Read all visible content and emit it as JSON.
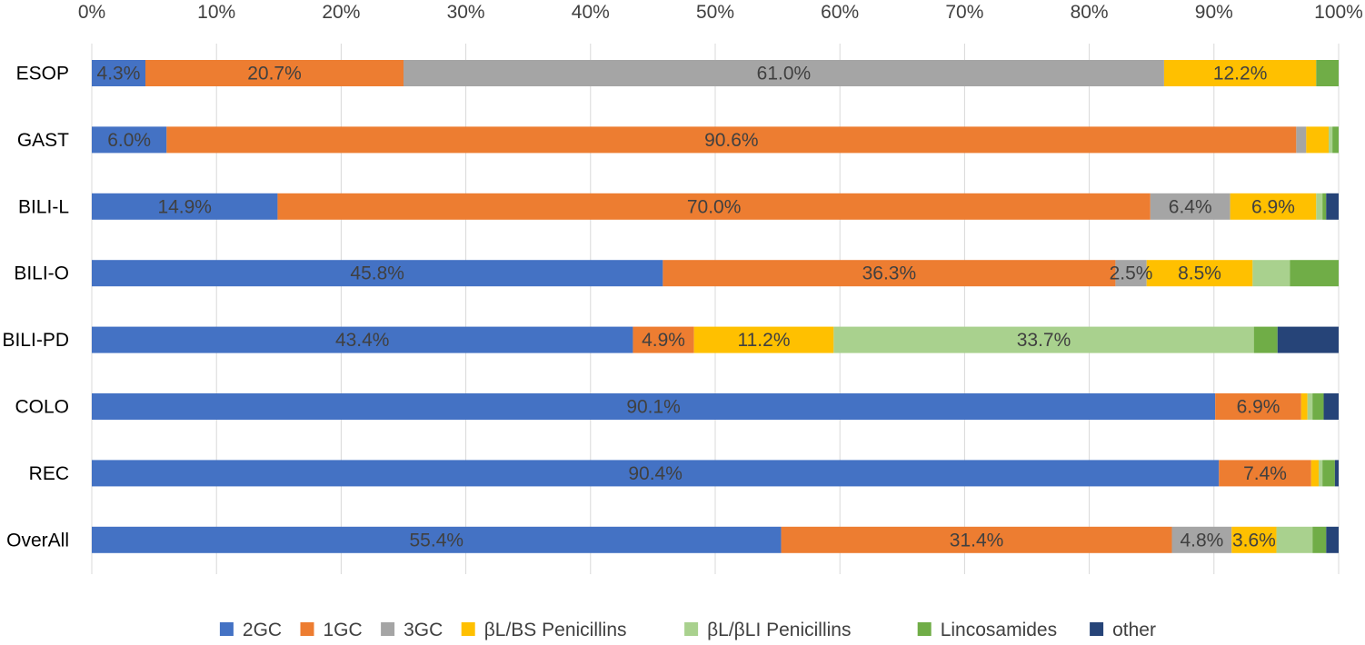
{
  "chart_data": {
    "type": "bar",
    "orientation": "horizontal",
    "stacked": "100-percent",
    "title": "",
    "xlabel": "",
    "ylabel": "",
    "xlim": [
      0,
      100
    ],
    "x_ticks": [
      "0%",
      "10%",
      "20%",
      "30%",
      "40%",
      "50%",
      "60%",
      "70%",
      "80%",
      "90%",
      "100%"
    ],
    "x_axis_position": "top",
    "grid": true,
    "legend_position": "bottom",
    "categories": [
      "ESOP",
      "GAST",
      "BILI-L",
      "BILI-O",
      "BILI-PD",
      "COLO",
      "REC",
      "OverAll"
    ],
    "series": [
      {
        "name": "2GC",
        "color": "#4472C4",
        "values": [
          4.3,
          6.0,
          14.9,
          45.8,
          43.4,
          90.1,
          90.4,
          55.4
        ],
        "labels": [
          "4.3%",
          "6.0%",
          "14.9%",
          "45.8%",
          "43.4%",
          "90.1%",
          "90.4%",
          "55.4%"
        ]
      },
      {
        "name": "1GC",
        "color": "#ED7D31",
        "values": [
          20.7,
          90.6,
          70.0,
          36.3,
          4.9,
          6.9,
          7.4,
          31.4
        ],
        "labels": [
          "20.7%",
          "90.6%",
          "70.0%",
          "36.3%",
          "4.9%",
          "6.9%",
          "7.4%",
          "31.4%"
        ]
      },
      {
        "name": "3GC",
        "color": "#A5A5A5",
        "values": [
          61.0,
          0.8,
          6.4,
          2.5,
          0,
          0,
          0,
          4.8
        ],
        "labels": [
          "61.0%",
          "",
          "6.4%",
          "2.5%",
          "",
          "",
          "",
          "4.8%"
        ]
      },
      {
        "name": "βL/BS Penicillins",
        "color": "#FFC000",
        "values": [
          12.2,
          1.8,
          6.9,
          8.5,
          11.2,
          0.5,
          0.6,
          3.6
        ],
        "labels": [
          "12.2%",
          "",
          "6.9%",
          "8.5%",
          "11.2%",
          "",
          "",
          "3.6%"
        ]
      },
      {
        "name": "βL/βLI Penicillins",
        "color": "#A9D18E",
        "values": [
          0,
          0.3,
          0.5,
          3.0,
          33.7,
          0.4,
          0.3,
          2.9
        ],
        "labels": [
          "",
          "",
          "",
          "",
          "33.7%",
          "",
          "",
          ""
        ]
      },
      {
        "name": "Lincosamides",
        "color": "#70AD47",
        "values": [
          1.8,
          0.5,
          0.3,
          3.9,
          1.9,
          0.9,
          1.0,
          1.1
        ],
        "labels": [
          "",
          "",
          "",
          "",
          "",
          "",
          "",
          ""
        ]
      },
      {
        "name": "other",
        "color": "#264478",
        "values": [
          0,
          0,
          1.0,
          0,
          4.9,
          1.2,
          0.3,
          1.0
        ],
        "labels": [
          "",
          "",
          "",
          "",
          "",
          "",
          "",
          ""
        ]
      }
    ]
  }
}
